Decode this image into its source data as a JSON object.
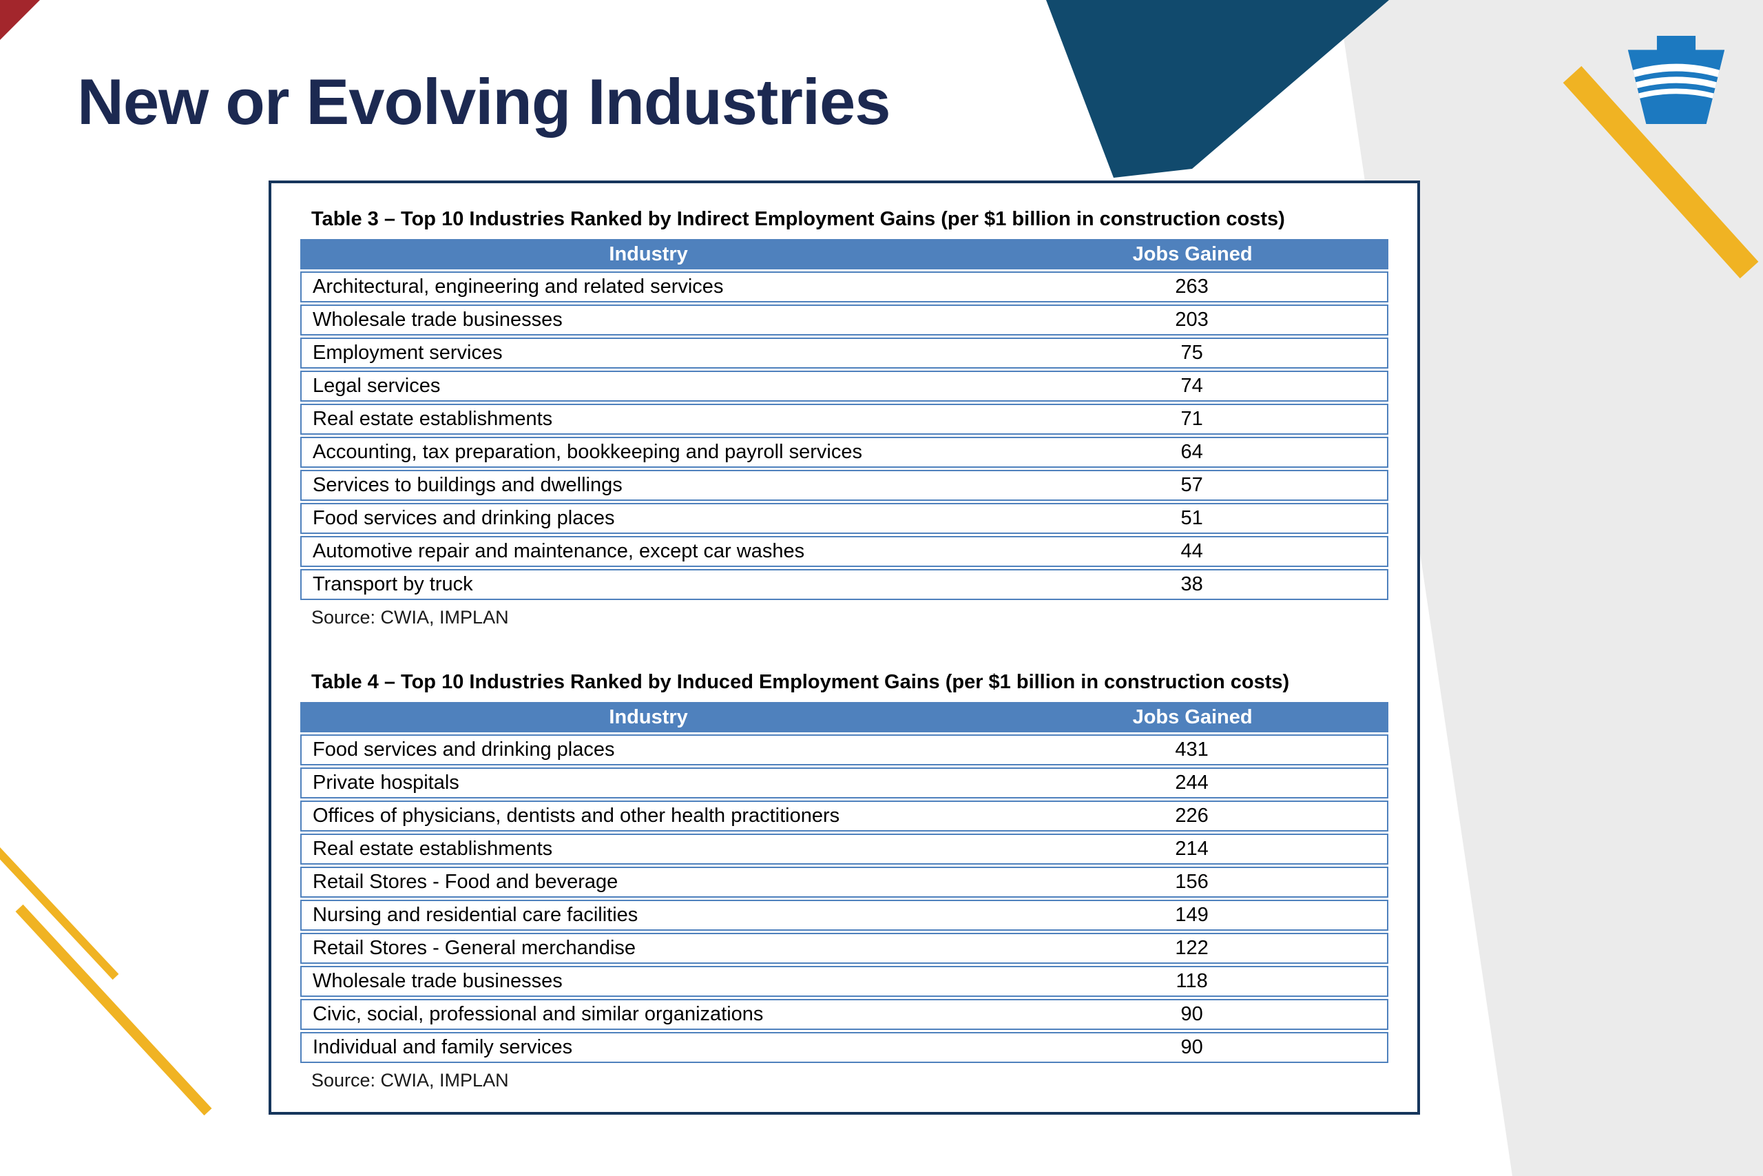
{
  "slide": {
    "title": "New or Evolving Industries"
  },
  "colors": {
    "title_navy": "#1c2951",
    "panel_border_navy": "#16365c",
    "table_header_blue": "#4f81bd",
    "decor_navy_band": "#114a6d",
    "decor_gray_band": "#ebebeb",
    "decor_gold": "#f0b323",
    "decor_red_accent": "#a3262c",
    "logo_blue": "#1c79c0"
  },
  "tables": [
    {
      "title": "Table 3 – Top 10 Industries Ranked by Indirect Employment Gains (per $1 billion in construction costs)",
      "columns": [
        "Industry",
        "Jobs Gained"
      ],
      "rows": [
        [
          "Architectural, engineering and related services",
          "263"
        ],
        [
          "Wholesale trade businesses",
          "203"
        ],
        [
          "Employment services",
          "75"
        ],
        [
          "Legal services",
          "74"
        ],
        [
          "Real estate establishments",
          "71"
        ],
        [
          "Accounting, tax preparation, bookkeeping and payroll services",
          "64"
        ],
        [
          "Services to buildings and dwellings",
          "57"
        ],
        [
          "Food services and drinking places",
          "51"
        ],
        [
          "Automotive repair and maintenance, except car washes",
          "44"
        ],
        [
          "Transport by truck",
          "38"
        ]
      ],
      "source": "Source: CWIA, IMPLAN"
    },
    {
      "title": "Table 4 – Top 10 Industries Ranked by Induced Employment Gains (per $1 billion in construction costs)",
      "columns": [
        "Industry",
        "Jobs Gained"
      ],
      "rows": [
        [
          "Food services and drinking places",
          "431"
        ],
        [
          "Private hospitals",
          "244"
        ],
        [
          "Offices of physicians, dentists and other health practitioners",
          "226"
        ],
        [
          "Real estate establishments",
          "214"
        ],
        [
          "Retail Stores - Food and beverage",
          "156"
        ],
        [
          "Nursing and residential care facilities",
          "149"
        ],
        [
          "Retail Stores - General merchandise",
          "122"
        ],
        [
          "Wholesale trade businesses",
          "118"
        ],
        [
          "Civic, social, professional and similar organizations",
          "90"
        ],
        [
          "Individual and family services",
          "90"
        ]
      ],
      "source": "Source: CWIA, IMPLAN"
    }
  ]
}
